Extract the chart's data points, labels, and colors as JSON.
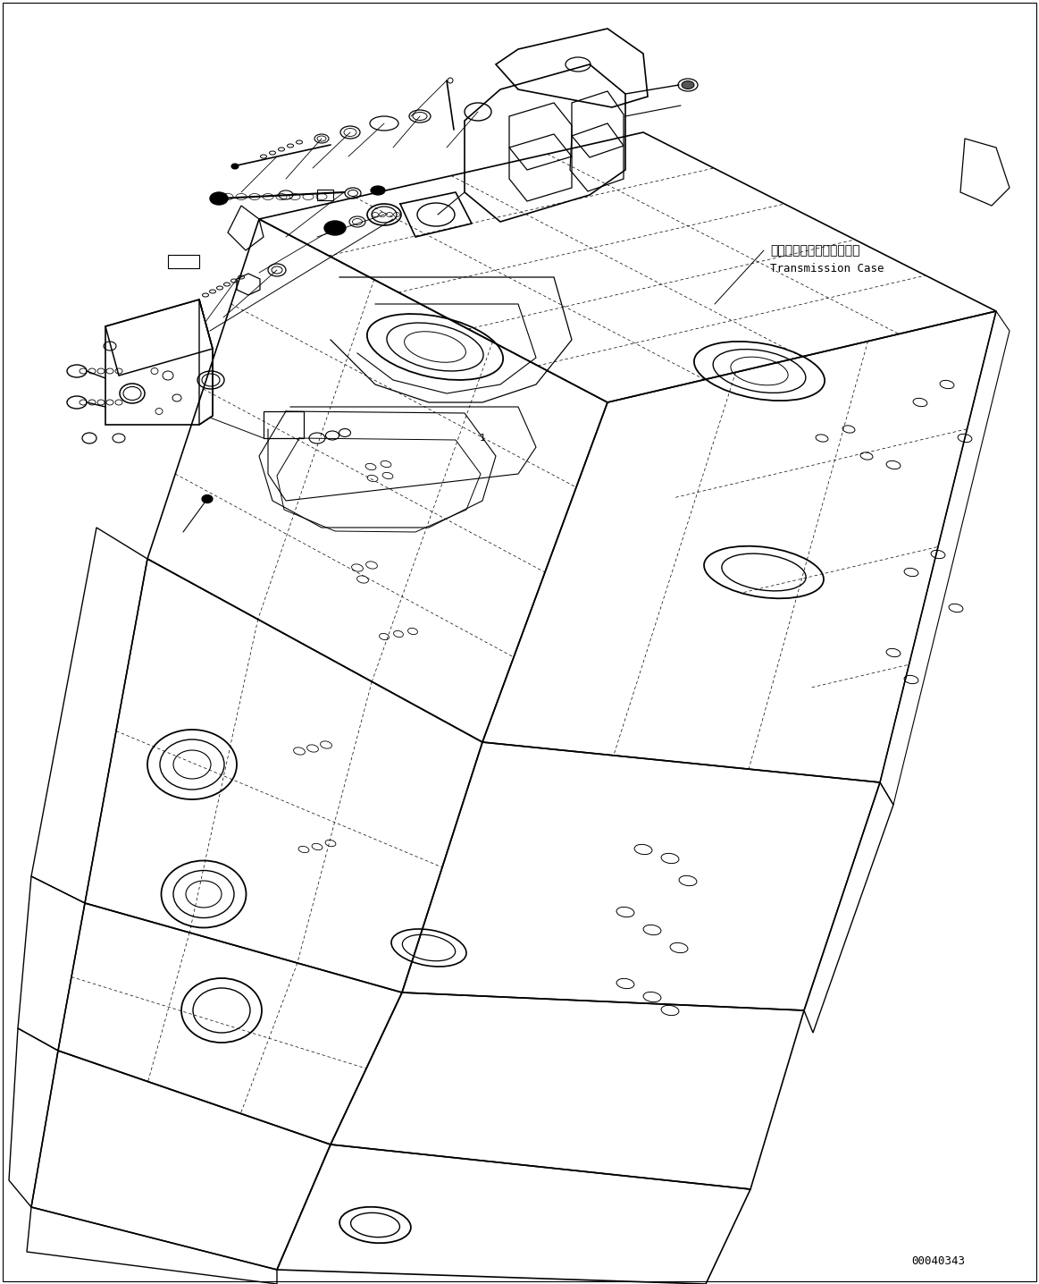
{
  "background_color": "#ffffff",
  "figure_width": 11.63,
  "figure_height": 14.36,
  "dpi": 100,
  "label_japanese": "トランスミッションケース",
  "label_english": "Transmission Case",
  "part_id": "00040343",
  "line_color": "#000000",
  "line_width": 1.0
}
